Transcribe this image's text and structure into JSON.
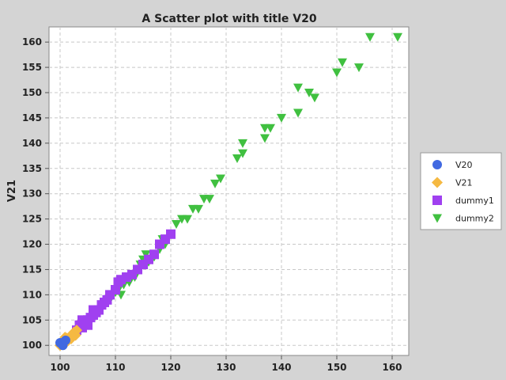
{
  "chart_data": {
    "type": "scatter",
    "title": "A Scatter plot with title V20",
    "xlabel": "",
    "ylabel": "V21",
    "xlim": [
      98,
      163
    ],
    "ylim": [
      98,
      163
    ],
    "xticks": [
      100,
      110,
      120,
      130,
      140,
      150,
      160
    ],
    "yticks": [
      100,
      105,
      110,
      115,
      120,
      125,
      130,
      135,
      140,
      145,
      150,
      155,
      160
    ],
    "grid": true,
    "legend_position": "right",
    "series": [
      {
        "name": "V20",
        "marker": "circle",
        "color": "#4169e1",
        "points": [
          [
            100.0,
            100.5
          ],
          [
            100.5,
            100.0
          ],
          [
            101.0,
            101.0
          ]
        ]
      },
      {
        "name": "V21",
        "marker": "diamond",
        "color": "#f5b942",
        "points": [
          [
            100.0,
            100.0
          ],
          [
            100.3,
            100.6
          ],
          [
            100.6,
            100.2
          ],
          [
            100.8,
            101.0
          ],
          [
            101.0,
            100.5
          ],
          [
            101.2,
            101.4
          ],
          [
            101.5,
            101.0
          ],
          [
            101.8,
            101.8
          ],
          [
            102.0,
            101.3
          ],
          [
            102.2,
            102.2
          ],
          [
            102.5,
            102.6
          ],
          [
            102.8,
            102.0
          ],
          [
            103.0,
            103.0
          ],
          [
            101.3,
            100.8
          ],
          [
            100.9,
            101.6
          ]
        ]
      },
      {
        "name": "dummy1",
        "marker": "square",
        "color": "#a040f0",
        "points": [
          [
            103.0,
            103.0
          ],
          [
            103.5,
            104.0
          ],
          [
            104.0,
            103.5
          ],
          [
            104.5,
            104.5
          ],
          [
            105.0,
            105.0
          ],
          [
            105.5,
            105.5
          ],
          [
            106.0,
            106.0
          ],
          [
            106.5,
            106.5
          ],
          [
            107.0,
            107.0
          ],
          [
            107.5,
            108.0
          ],
          [
            108.0,
            108.5
          ],
          [
            108.5,
            109.0
          ],
          [
            109.0,
            110.0
          ],
          [
            110.0,
            111.0
          ],
          [
            110.5,
            112.5
          ],
          [
            111.0,
            113.0
          ],
          [
            112.0,
            113.5
          ],
          [
            113.0,
            114.0
          ],
          [
            114.0,
            115.0
          ],
          [
            115.0,
            116.0
          ],
          [
            116.0,
            117.0
          ],
          [
            117.0,
            118.0
          ],
          [
            118.0,
            120.0
          ],
          [
            119.0,
            121.0
          ],
          [
            120.0,
            122.0
          ],
          [
            105.0,
            104.0
          ],
          [
            104.0,
            105.0
          ],
          [
            106.0,
            107.0
          ]
        ]
      },
      {
        "name": "dummy2",
        "marker": "triangle-down",
        "color": "#40c040",
        "points": [
          [
            109.0,
            109.0
          ],
          [
            109.5,
            110.0
          ],
          [
            110.0,
            110.5
          ],
          [
            110.5,
            111.0
          ],
          [
            111.0,
            110.0
          ],
          [
            111.5,
            112.0
          ],
          [
            112.0,
            113.0
          ],
          [
            112.5,
            112.5
          ],
          [
            113.0,
            114.0
          ],
          [
            113.5,
            113.5
          ],
          [
            114.0,
            115.0
          ],
          [
            114.5,
            116.0
          ],
          [
            115.0,
            117.0
          ],
          [
            115.5,
            118.0
          ],
          [
            116.0,
            116.5
          ],
          [
            117.0,
            117.5
          ],
          [
            118.0,
            119.0
          ],
          [
            118.5,
            121.0
          ],
          [
            119.0,
            120.0
          ],
          [
            120.0,
            122.0
          ],
          [
            121.0,
            124.0
          ],
          [
            122.0,
            125.0
          ],
          [
            123.0,
            125.0
          ],
          [
            124.0,
            127.0
          ],
          [
            125.0,
            127.0
          ],
          [
            126.0,
            129.0
          ],
          [
            127.0,
            129.0
          ],
          [
            128.0,
            132.0
          ],
          [
            129.0,
            133.0
          ],
          [
            132.0,
            137.0
          ],
          [
            133.0,
            138.0
          ],
          [
            133.0,
            140.0
          ],
          [
            137.0,
            141.0
          ],
          [
            137.0,
            143.0
          ],
          [
            138.0,
            143.0
          ],
          [
            140.0,
            145.0
          ],
          [
            143.0,
            146.0
          ],
          [
            143.0,
            151.0
          ],
          [
            145.0,
            150.0
          ],
          [
            146.0,
            149.0
          ],
          [
            150.0,
            154.0
          ],
          [
            151.0,
            156.0
          ],
          [
            154.0,
            155.0
          ],
          [
            156.0,
            161.0
          ],
          [
            161.0,
            161.0
          ]
        ]
      }
    ]
  }
}
